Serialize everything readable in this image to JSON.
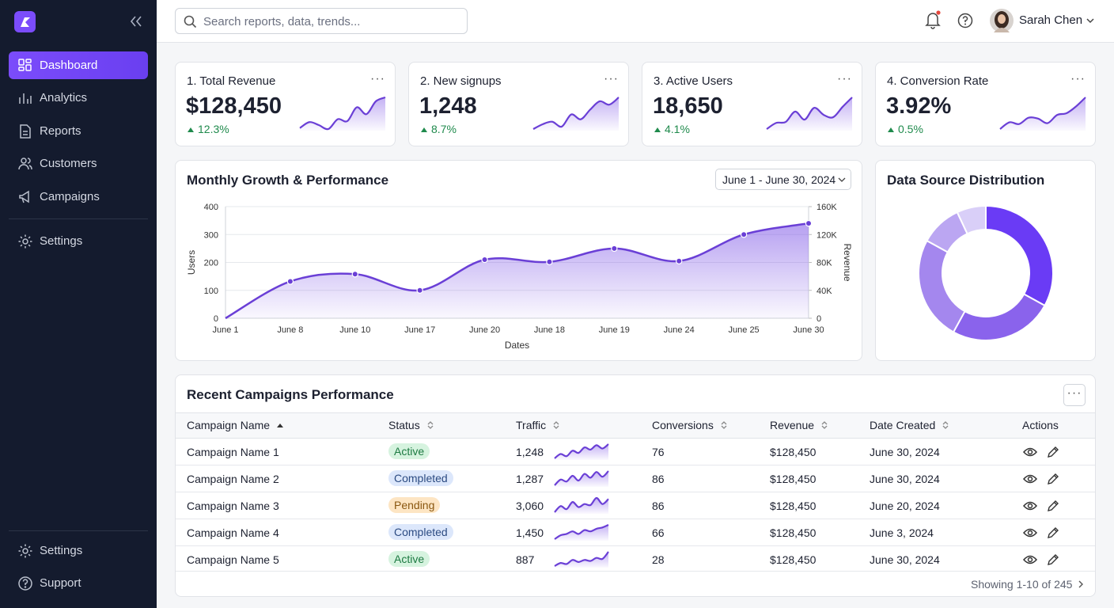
{
  "sidebar": {
    "nav": [
      "Dashboard",
      "Analytics",
      "Reports",
      "Customers",
      "Campaigns",
      "Settings"
    ],
    "footer": [
      "Settings",
      "Support"
    ]
  },
  "search_placeholder": "Search reports, data, trends...",
  "user": "Sarah Chen",
  "kpis": [
    {
      "title": "1. Total Revenue",
      "value": "$128,450",
      "change": "12.3%",
      "trend": [
        30,
        42,
        36,
        28,
        48,
        44,
        72,
        58,
        84,
        92
      ]
    },
    {
      "title": "2. New signups",
      "value": "1,248",
      "change": "8.7%",
      "trend": [
        25,
        35,
        40,
        30,
        55,
        45,
        65,
        82,
        75,
        90
      ]
    },
    {
      "title": "3. Active Users",
      "value": "18,650",
      "change": "4.1%",
      "trend": [
        25,
        38,
        40,
        62,
        45,
        70,
        55,
        50,
        72,
        92
      ]
    },
    {
      "title": "4. Conversion Rate",
      "value": "3.92%",
      "change": "0.5%",
      "trend": [
        25,
        40,
        36,
        50,
        48,
        38,
        56,
        60,
        75,
        95
      ]
    }
  ],
  "chart_data": [
    {
      "type": "line",
      "title": "Monthly Growth & Performance",
      "date_range": "June 1 - June 30, 2024",
      "categories": [
        "June 1",
        "June 8",
        "June 10",
        "June 17",
        "June 20",
        "June 18",
        "June 19",
        "June 24",
        "June 25",
        "June 30"
      ],
      "values": [
        0,
        132,
        158,
        100,
        210,
        202,
        250,
        205,
        300,
        340
      ],
      "color": "#6a3fd6",
      "ylim": [
        0,
        400
      ],
      "yticks": [
        0,
        100,
        200,
        300,
        400
      ],
      "y2lim": [
        0,
        160000
      ],
      "y2ticks": [
        0,
        {
          "value": 40000,
          "label": "40K"
        },
        {
          "value": 80000,
          "label": "80K"
        },
        {
          "value": 120000,
          "label": "120K"
        },
        {
          "value": 160000,
          "label": "160K"
        }
      ],
      "ylabel": "Users",
      "y2label": "Revenue",
      "xlabel": "Dates",
      "grid": true
    },
    {
      "type": "pie",
      "title": "Data Source Distribution",
      "values": [
        33,
        25,
        25,
        10,
        7
      ],
      "colors": [
        "#6a3bf5",
        "#8a63ec",
        "#a487ee",
        "#bba6f2",
        "#d9cff8"
      ],
      "donut": true
    }
  ],
  "table": {
    "title": "Recent Campaigns Performance",
    "columns": [
      "Campaign Name",
      "Status",
      "Traffic",
      "Conversions",
      "Revenue",
      "Date Created",
      "Actions"
    ],
    "rows": [
      {
        "name": "Campaign Name 1",
        "status": {
          "text": "Active",
          "bg": "#d6f3df",
          "fg": "#1d7a42"
        },
        "traffic": "1,248",
        "trend": [
          20,
          28,
          24,
          34,
          30,
          40,
          36,
          44,
          38,
          46
        ],
        "conversions": "76",
        "revenue": "$128,450",
        "date": "June 30, 2024"
      },
      {
        "name": "Campaign Name 2",
        "status": {
          "text": "Completed",
          "bg": "#dce7fb",
          "fg": "#2c4b82"
        },
        "traffic": "1,287",
        "trend": [
          18,
          30,
          26,
          38,
          28,
          42,
          34,
          46,
          36,
          48
        ],
        "conversions": "86",
        "revenue": "$128,450",
        "date": "June 30, 2024"
      },
      {
        "name": "Campaign Name 3",
        "status": {
          "text": "Pending",
          "bg": "#fde5c3",
          "fg": "#8a5710"
        },
        "traffic": "3,060",
        "trend": [
          20,
          32,
          26,
          40,
          30,
          36,
          34,
          48,
          36,
          46
        ],
        "conversions": "86",
        "revenue": "$128,450",
        "date": "June 20, 2024"
      },
      {
        "name": "Campaign Name 4",
        "status": {
          "text": "Completed",
          "bg": "#dce7fb",
          "fg": "#2c4b82"
        },
        "traffic": "1,450",
        "trend": [
          22,
          28,
          30,
          34,
          30,
          36,
          34,
          38,
          40,
          44
        ],
        "conversions": "66",
        "revenue": "$128,450",
        "date": "June 3, 2024"
      },
      {
        "name": "Campaign Name 5",
        "status": {
          "text": "Active",
          "bg": "#d6f3df",
          "fg": "#1d7a42"
        },
        "traffic": "887",
        "trend": [
          18,
          24,
          22,
          30,
          26,
          30,
          28,
          34,
          32,
          46
        ],
        "conversions": "28",
        "revenue": "$128,450",
        "date": "June 30, 2024"
      }
    ],
    "footer": "Showing 1-10 of 245"
  }
}
